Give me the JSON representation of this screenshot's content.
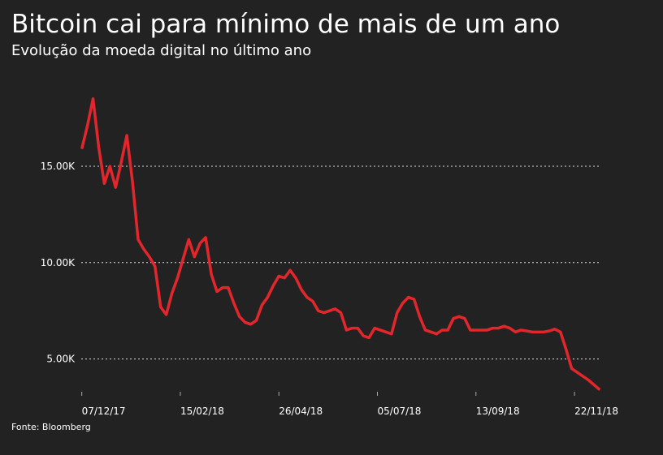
{
  "chart_data": {
    "type": "line",
    "title": "Bitcoin cai para mínimo de mais de um ano",
    "subtitle": "Evolução da moeda digital no último ano",
    "source": "Fonte: Bloomberg",
    "color": "#e3262b",
    "x": [
      "2017-12-07",
      "2017-12-11",
      "2017-12-15",
      "2017-12-19",
      "2017-12-23",
      "2017-12-27",
      "2017-12-31",
      "2018-01-04",
      "2018-01-08",
      "2018-01-12",
      "2018-01-16",
      "2018-01-20",
      "2018-01-24",
      "2018-01-28",
      "2018-02-01",
      "2018-02-05",
      "2018-02-09",
      "2018-02-13",
      "2018-02-17",
      "2018-02-21",
      "2018-02-25",
      "2018-03-01",
      "2018-03-05",
      "2018-03-09",
      "2018-03-13",
      "2018-03-17",
      "2018-03-21",
      "2018-03-25",
      "2018-03-29",
      "2018-04-02",
      "2018-04-06",
      "2018-04-10",
      "2018-04-14",
      "2018-04-18",
      "2018-04-22",
      "2018-04-26",
      "2018-04-30",
      "2018-05-04",
      "2018-05-08",
      "2018-05-12",
      "2018-05-16",
      "2018-05-20",
      "2018-05-24",
      "2018-05-28",
      "2018-06-01",
      "2018-06-05",
      "2018-06-09",
      "2018-06-13",
      "2018-06-17",
      "2018-06-21",
      "2018-06-25",
      "2018-06-29",
      "2018-07-03",
      "2018-07-07",
      "2018-07-11",
      "2018-07-15",
      "2018-07-19",
      "2018-07-23",
      "2018-07-27",
      "2018-07-31",
      "2018-08-04",
      "2018-08-08",
      "2018-08-12",
      "2018-08-16",
      "2018-08-20",
      "2018-08-24",
      "2018-08-28",
      "2018-09-01",
      "2018-09-05",
      "2018-09-09",
      "2018-09-13",
      "2018-09-17",
      "2018-09-21",
      "2018-09-25",
      "2018-09-29",
      "2018-10-03",
      "2018-10-07",
      "2018-10-11",
      "2018-10-15",
      "2018-10-19",
      "2018-10-23",
      "2018-10-27",
      "2018-10-31",
      "2018-11-04",
      "2018-11-08",
      "2018-11-12",
      "2018-11-16",
      "2018-11-20",
      "2018-11-24",
      "2018-11-28",
      "2018-12-02",
      "2018-12-06",
      "2018-12-10"
    ],
    "values": [
      15900,
      17100,
      18500,
      16000,
      14100,
      15000,
      13900,
      15200,
      16600,
      14200,
      11200,
      10700,
      10300,
      9800,
      7700,
      7300,
      8400,
      9200,
      10200,
      11200,
      10300,
      11000,
      11300,
      9400,
      8500,
      8700,
      8700,
      7900,
      7200,
      6900,
      6800,
      7000,
      7800,
      8200,
      8800,
      9300,
      9200,
      9600,
      9200,
      8600,
      8200,
      8000,
      7500,
      7400,
      7500,
      7600,
      7400,
      6500,
      6600,
      6600,
      6200,
      6100,
      6600,
      6500,
      6400,
      6300,
      7400,
      7900,
      8200,
      8100,
      7200,
      6500,
      6400,
      6300,
      6500,
      6500,
      7100,
      7200,
      7100,
      6500,
      6500,
      6500,
      6500,
      6600,
      6600,
      6700,
      6600,
      6400,
      6500,
      6450,
      6400,
      6400,
      6400,
      6450,
      6550,
      6400,
      5500,
      4500,
      4300,
      4100,
      3900,
      3650,
      3400
    ],
    "xlim": [
      "2017-12-02",
      "2018-12-11"
    ],
    "xticks": [
      {
        "value": "2017-12-07",
        "label": "07/12/17"
      },
      {
        "value": "2018-02-15",
        "label": "15/02/18"
      },
      {
        "value": "2018-04-26",
        "label": "26/04/18"
      },
      {
        "value": "2018-07-05",
        "label": "05/07/18"
      },
      {
        "value": "2018-09-13",
        "label": "13/09/18"
      },
      {
        "value": "2018-11-22",
        "label": "22/11/18"
      }
    ],
    "ylim": [
      3300,
      19500
    ],
    "yticks": [
      {
        "value": 5000,
        "label": "5.00K"
      },
      {
        "value": 10000,
        "label": "10.00K"
      },
      {
        "value": 15000,
        "label": "15.00K"
      }
    ],
    "grid": true
  }
}
